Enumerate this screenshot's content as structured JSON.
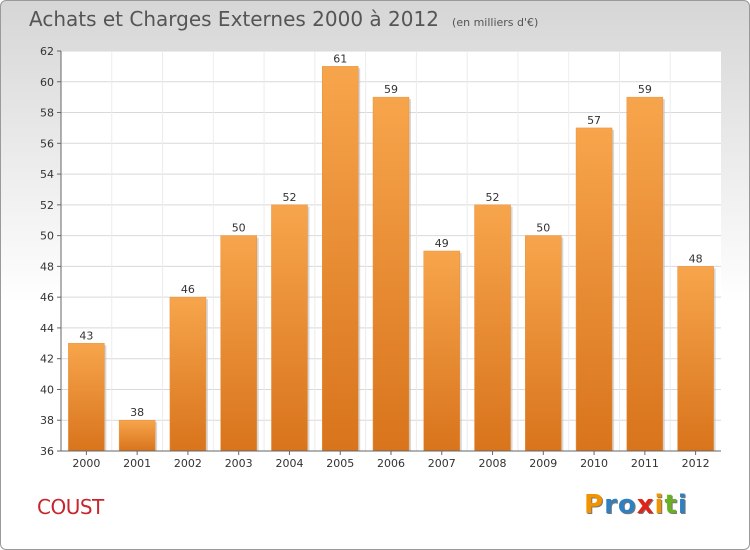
{
  "title": "Achats et Charges Externes 2000 à 2012",
  "subtitle": "(en milliers d'€)",
  "commune": "COUST",
  "brand": {
    "letters": [
      "P",
      "r",
      "o",
      "x",
      "i",
      "t",
      "i"
    ],
    "colors": [
      "#f29400",
      "#2f7fc1",
      "#2f7fc1",
      "#e2231a",
      "#f29400",
      "#6ab023",
      "#2f7fc1"
    ]
  },
  "chart_data": {
    "type": "bar",
    "title": "Achats et Charges Externes 2000 à 2012",
    "subtitle": "(en milliers d'€)",
    "categories": [
      "2000",
      "2001",
      "2002",
      "2003",
      "2004",
      "2005",
      "2006",
      "2007",
      "2008",
      "2009",
      "2010",
      "2011",
      "2012"
    ],
    "values": [
      43,
      38,
      46,
      50,
      52,
      61,
      59,
      49,
      52,
      50,
      57,
      59,
      48
    ],
    "ylim": [
      36,
      62
    ],
    "yticks": [
      36,
      38,
      40,
      42,
      44,
      46,
      48,
      50,
      52,
      54,
      56,
      58,
      60,
      62
    ],
    "grid": true,
    "bar_color": "#f0913a",
    "xlabel": "",
    "ylabel": ""
  }
}
